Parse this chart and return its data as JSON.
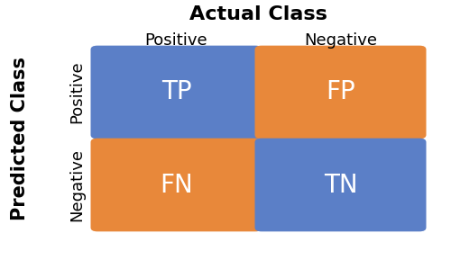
{
  "title": "Actual Class",
  "ylabel": "Predicted Class",
  "col_labels": [
    "Positive",
    "Negative"
  ],
  "row_labels": [
    "Positive",
    "Negative"
  ],
  "cells": [
    [
      "TP",
      "FP"
    ],
    [
      "FN",
      "TN"
    ]
  ],
  "colors": [
    [
      "#5b7fc7",
      "#e8883a"
    ],
    [
      "#e8883a",
      "#5b7fc7"
    ]
  ],
  "text_color": "#ffffff",
  "bg_color": "#ffffff",
  "cell_text_fontsize": 20,
  "col_label_fontsize": 13,
  "row_label_fontsize": 13,
  "title_fontsize": 16,
  "ylabel_fontsize": 15
}
